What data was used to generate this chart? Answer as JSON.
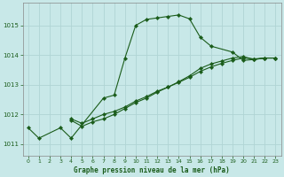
{
  "title": "Graphe pression niveau de la mer (hPa)",
  "bg_color": "#c8e8e8",
  "grid_color": "#b0d4d4",
  "line_color": "#1a5c1a",
  "x_min": -0.5,
  "x_max": 23.5,
  "y_min": 1010.6,
  "y_max": 1015.75,
  "yticks": [
    1011,
    1012,
    1013,
    1014,
    1015
  ],
  "xticks": [
    0,
    1,
    2,
    3,
    4,
    5,
    6,
    7,
    8,
    9,
    10,
    11,
    12,
    13,
    14,
    15,
    16,
    17,
    18,
    19,
    20,
    21,
    22,
    23
  ],
  "series": [
    {
      "x": [
        0,
        1,
        3,
        4,
        7,
        8,
        9,
        10,
        11,
        12,
        13,
        14,
        15,
        16,
        17,
        19,
        20,
        21,
        22,
        23
      ],
      "y": [
        1011.55,
        1011.2,
        1011.55,
        1011.2,
        1012.55,
        1012.65,
        1013.9,
        1015.0,
        1015.2,
        1015.25,
        1015.3,
        1015.35,
        1015.22,
        1014.6,
        1014.3,
        1014.1,
        1013.82,
        1013.85,
        1013.9,
        1013.9
      ]
    },
    {
      "x": [
        4,
        5,
        6,
        7,
        8,
        9,
        10,
        11,
        12,
        13,
        14,
        15,
        16,
        17,
        18,
        19,
        20,
        21,
        22,
        23
      ],
      "y": [
        1011.8,
        1011.6,
        1011.75,
        1011.85,
        1012.0,
        1012.2,
        1012.4,
        1012.55,
        1012.75,
        1012.92,
        1013.1,
        1013.3,
        1013.55,
        1013.7,
        1013.8,
        1013.9,
        1013.95,
        1013.85,
        1013.9,
        1013.9
      ]
    },
    {
      "x": [
        4,
        5,
        6,
        7,
        8,
        9,
        10,
        11,
        12,
        13,
        14,
        15,
        16,
        17,
        18,
        19,
        20,
        21,
        22,
        23
      ],
      "y": [
        1011.85,
        1011.7,
        1011.85,
        1012.0,
        1012.1,
        1012.25,
        1012.45,
        1012.6,
        1012.78,
        1012.92,
        1013.08,
        1013.25,
        1013.45,
        1013.6,
        1013.72,
        1013.82,
        1013.9,
        1013.87,
        1013.9,
        1013.9
      ]
    }
  ]
}
